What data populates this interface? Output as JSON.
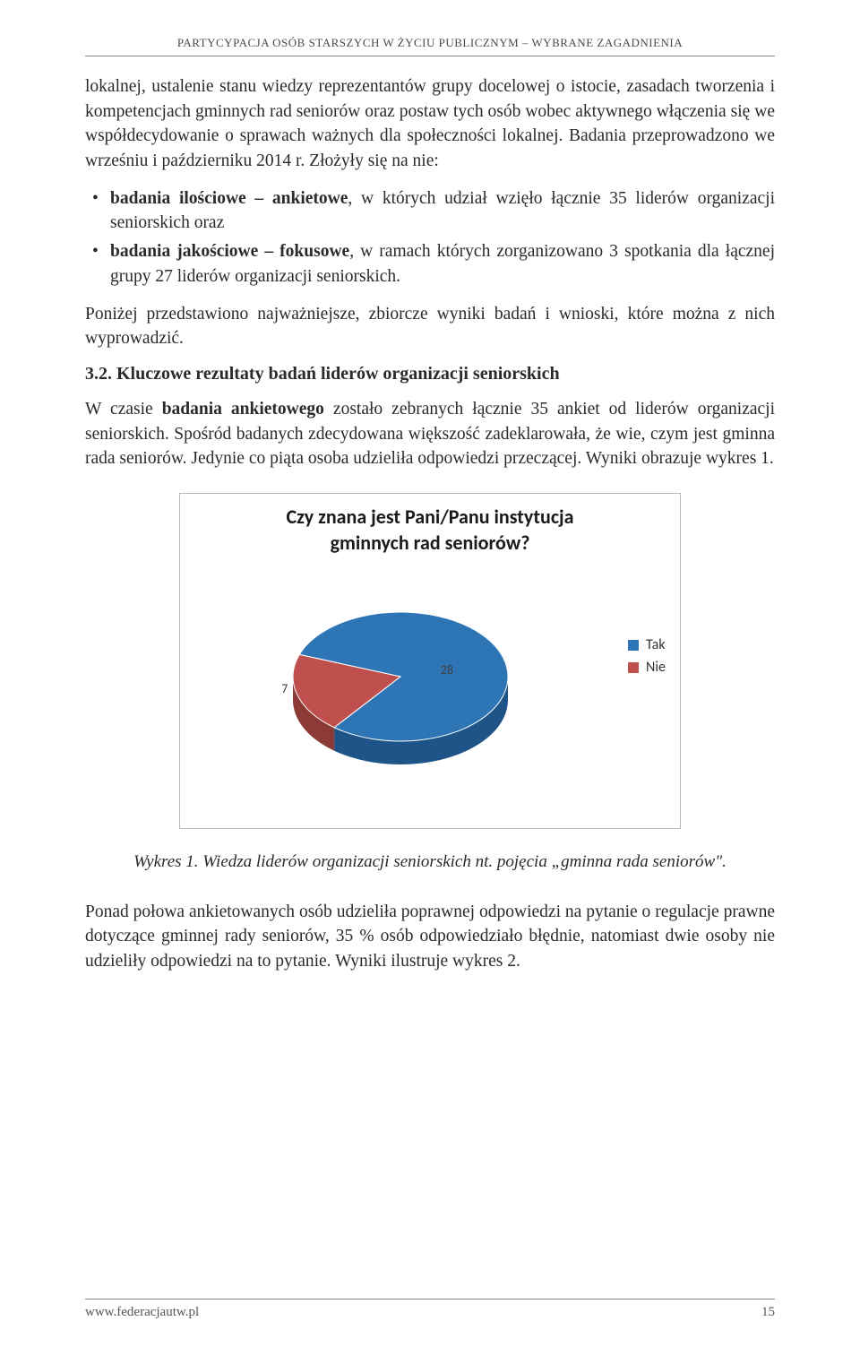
{
  "header": {
    "running_title": "PARTYCYPACJA OSÓB STARSZYCH W ŻYCIU PUBLICZNYM – WYBRANE ZAGADNIENIA"
  },
  "content": {
    "para1": "lokalnej, ustalenie stanu wiedzy reprezentantów grupy docelowej o istocie, zasadach tworzenia i kompetencjach gminnych rad seniorów oraz postaw tych osób wobec aktywnego włączenia się we współdecydowanie o sprawach ważnych dla społeczności lokalnej. Badania przeprowadzono we wrześniu i październiku 2014 r. Złożyły się na nie:",
    "bullet1_bold": "badania ilościowe – ankietowe",
    "bullet1_rest": ", w których udział wzięło łącznie 35 liderów organizacji seniorskich oraz",
    "bullet2_bold": "badania jakościowe – fokusowe",
    "bullet2_rest": ", w ramach których zorganizowano 3 spotkania dla łącznej grupy 27 liderów organizacji seniorskich.",
    "para2": "Poniżej przedstawiono najważniejsze, zbiorcze wyniki badań i wnioski, które można z nich wyprowadzić.",
    "heading32": "3.2. Kluczowe rezultaty badań liderów organizacji seniorskich",
    "para3_pre": "W czasie ",
    "para3_bold": "badania ankietowego",
    "para3_post": " zostało zebranych łącznie 35 ankiet od liderów organizacji seniorskich. Spośród badanych zdecydowana większość zadeklarowała, że wie, czym jest gminna rada seniorów. Jedynie co piąta osoba udzieliła odpowiedzi przeczącej. Wyniki obrazuje wykres 1.",
    "caption": "Wykres 1. Wiedza liderów organizacji seniorskich nt. pojęcia „gminna rada seniorów\".",
    "para4": "Ponad połowa ankietowanych osób udzieliła poprawnej odpowiedzi na pytanie o regulacje prawne dotyczące gminnej rady seniorów, 35 % osób odpowiedziało błędnie, natomiast dwie osoby nie udzieliły odpowiedzi na to pytanie. Wyniki ilustruje wykres 2."
  },
  "chart": {
    "type": "pie-3d",
    "title_line1": "Czy znana jest Pani/Panu instytucja",
    "title_line2": "gminnych rad seniorów?",
    "slices": [
      {
        "label": "Tak",
        "value": 28,
        "color": "#2e75b6",
        "color_side": "#1f5489"
      },
      {
        "label": "Nie",
        "value": 7,
        "color": "#c0504d",
        "color_side": "#8c3a37"
      }
    ],
    "value_label_color": "#404040",
    "value_label_fontsize": 14,
    "legend_font": "Calibri",
    "background": "#ffffff",
    "border_color": "#b8b8b8"
  },
  "footer": {
    "url": "www.federacjautw.pl",
    "page": "15"
  }
}
